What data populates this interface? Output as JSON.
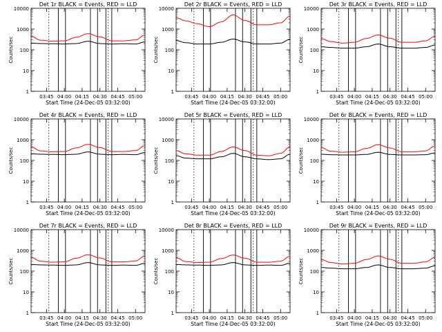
{
  "colors": {
    "events": "#000000",
    "lld": "#ff0000",
    "axes": "#000000",
    "background": "#ffffff"
  },
  "y_axis_label": "Counts/sec",
  "y_ticks": [
    "1",
    "10",
    "100",
    "1000",
    "10000"
  ],
  "x_ticks": [
    "03:45",
    "04:00",
    "04:15",
    "04:30",
    "04:45",
    "05:00"
  ],
  "x_axis_label": "Start Time (24-Dec-05 03:32:00)",
  "chart_data": [
    {
      "type": "line",
      "title": "Det 1r BLACK = Events, RED = LLD",
      "xlabel": "Start Time (24-Dec-05 03:32:00)",
      "ylabel": "Counts/sec",
      "yscale": "log",
      "ylim": [
        1,
        10000
      ],
      "x": [
        "03:32",
        "03:40",
        "03:50",
        "04:00",
        "04:10",
        "04:20",
        "04:30",
        "04:40",
        "04:50",
        "05:00",
        "05:08"
      ],
      "series": [
        {
          "name": "Events",
          "values": [
            210,
            200,
            195,
            190,
            200,
            260,
            200,
            190,
            195,
            190,
            240
          ]
        },
        {
          "name": "LLD",
          "values": [
            450,
            290,
            260,
            270,
            400,
            600,
            420,
            270,
            270,
            300,
            520
          ]
        }
      ]
    },
    {
      "type": "line",
      "title": "Det 2r BLACK = Events, RED = LLD",
      "xlabel": "Start Time (24-Dec-05 03:32:00)",
      "ylabel": "Counts/sec",
      "yscale": "log",
      "ylim": [
        1,
        10000
      ],
      "x": [
        "03:32",
        "03:40",
        "03:50",
        "04:00",
        "04:10",
        "04:20",
        "04:30",
        "04:40",
        "04:50",
        "05:00",
        "05:08"
      ],
      "series": [
        {
          "name": "Events",
          "values": [
            280,
            220,
            190,
            190,
            230,
            330,
            240,
            190,
            190,
            210,
            320
          ]
        },
        {
          "name": "LLD",
          "values": [
            3500,
            2500,
            1800,
            1300,
            2200,
            4800,
            2600,
            1600,
            1600,
            2000,
            4200
          ]
        }
      ]
    },
    {
      "type": "line",
      "title": "Det 3r BLACK = Events, RED = LLD",
      "xlabel": "Start Time (24-Dec-05 03:32:00)",
      "ylabel": "Counts/sec",
      "yscale": "log",
      "ylim": [
        1,
        10000
      ],
      "x": [
        "03:32",
        "03:40",
        "03:50",
        "04:00",
        "04:10",
        "04:20",
        "04:30",
        "04:40",
        "04:50",
        "05:00",
        "05:08"
      ],
      "series": [
        {
          "name": "Events",
          "values": [
            140,
            130,
            120,
            120,
            140,
            190,
            140,
            120,
            120,
            130,
            170
          ]
        },
        {
          "name": "LLD",
          "values": [
            350,
            250,
            210,
            230,
            350,
            520,
            360,
            230,
            230,
            270,
            450
          ]
        }
      ]
    },
    {
      "type": "line",
      "title": "Det 4r BLACK = Events, RED = LLD",
      "xlabel": "Start Time (24-Dec-05 03:32:00)",
      "ylabel": "Counts/sec",
      "yscale": "log",
      "ylim": [
        1,
        10000
      ],
      "x": [
        "03:32",
        "03:40",
        "03:50",
        "04:00",
        "04:10",
        "04:20",
        "04:30",
        "04:40",
        "04:50",
        "05:00",
        "05:08"
      ],
      "series": [
        {
          "name": "Events",
          "values": [
            210,
            200,
            195,
            190,
            200,
            260,
            200,
            190,
            195,
            190,
            240
          ]
        },
        {
          "name": "LLD",
          "values": [
            450,
            290,
            260,
            270,
            400,
            600,
            420,
            270,
            270,
            300,
            520
          ]
        }
      ]
    },
    {
      "type": "line",
      "title": "Det 5r BLACK = Events, RED = LLD",
      "xlabel": "Start Time (24-Dec-05 03:32:00)",
      "ylabel": "Counts/sec",
      "yscale": "log",
      "ylim": [
        1,
        10000
      ],
      "x": [
        "03:32",
        "03:40",
        "03:50",
        "04:00",
        "04:10",
        "04:20",
        "04:30",
        "04:40",
        "04:50",
        "05:00",
        "05:08"
      ],
      "series": [
        {
          "name": "Events",
          "values": [
            170,
            130,
            120,
            120,
            150,
            220,
            150,
            120,
            110,
            120,
            200
          ]
        },
        {
          "name": "LLD",
          "values": [
            300,
            210,
            180,
            180,
            270,
            450,
            300,
            180,
            170,
            220,
            450
          ]
        }
      ]
    },
    {
      "type": "line",
      "title": "Det 6r BLACK = Events, RED = LLD",
      "xlabel": "Start Time (24-Dec-05 03:32:00)",
      "ylabel": "Counts/sec",
      "yscale": "log",
      "ylim": [
        1,
        10000
      ],
      "x": [
        "03:32",
        "03:40",
        "03:50",
        "04:00",
        "04:10",
        "04:20",
        "04:30",
        "04:40",
        "04:50",
        "05:00",
        "05:08"
      ],
      "series": [
        {
          "name": "Events",
          "values": [
            200,
            190,
            185,
            185,
            195,
            250,
            195,
            185,
            185,
            190,
            230
          ]
        },
        {
          "name": "LLD",
          "values": [
            420,
            280,
            250,
            260,
            380,
            580,
            400,
            260,
            260,
            290,
            500
          ]
        }
      ]
    },
    {
      "type": "line",
      "title": "Det 7r BLACK = Events, RED = LLD",
      "xlabel": "Start Time (24-Dec-05 03:32:00)",
      "ylabel": "Counts/sec",
      "yscale": "log",
      "ylim": [
        1,
        10000
      ],
      "x": [
        "03:32",
        "03:40",
        "03:50",
        "04:00",
        "04:10",
        "04:20",
        "04:30",
        "04:40",
        "04:50",
        "05:00",
        "05:08"
      ],
      "series": [
        {
          "name": "Events",
          "values": [
            210,
            200,
            195,
            190,
            200,
            260,
            200,
            190,
            195,
            190,
            240
          ]
        },
        {
          "name": "LLD",
          "values": [
            460,
            300,
            270,
            280,
            420,
            620,
            430,
            280,
            280,
            310,
            540
          ]
        }
      ]
    },
    {
      "type": "line",
      "title": "Det 8r BLACK = Events, RED = LLD",
      "xlabel": "Start Time (24-Dec-05 03:32:00)",
      "ylabel": "Counts/sec",
      "yscale": "log",
      "ylim": [
        1,
        10000
      ],
      "x": [
        "03:32",
        "03:40",
        "03:50",
        "04:00",
        "04:10",
        "04:20",
        "04:30",
        "04:40",
        "04:50",
        "05:00",
        "05:08"
      ],
      "series": [
        {
          "name": "Events",
          "values": [
            210,
            200,
            195,
            190,
            200,
            260,
            200,
            190,
            195,
            190,
            240
          ]
        },
        {
          "name": "LLD",
          "values": [
            450,
            290,
            260,
            270,
            400,
            600,
            420,
            270,
            270,
            300,
            520
          ]
        }
      ]
    },
    {
      "type": "line",
      "title": "Det 9r BLACK = Events, RED = LLD",
      "xlabel": "Start Time (24-Dec-05 03:32:00)",
      "ylabel": "Counts/sec",
      "yscale": "log",
      "ylim": [
        1,
        10000
      ],
      "x": [
        "03:32",
        "03:40",
        "03:50",
        "04:00",
        "04:10",
        "04:20",
        "04:30",
        "04:40",
        "04:50",
        "05:00",
        "05:08"
      ],
      "series": [
        {
          "name": "Events",
          "values": [
            150,
            140,
            130,
            130,
            150,
            200,
            150,
            130,
            130,
            140,
            180
          ]
        },
        {
          "name": "LLD",
          "values": [
            360,
            260,
            220,
            240,
            360,
            540,
            370,
            240,
            240,
            280,
            460
          ]
        }
      ]
    }
  ]
}
